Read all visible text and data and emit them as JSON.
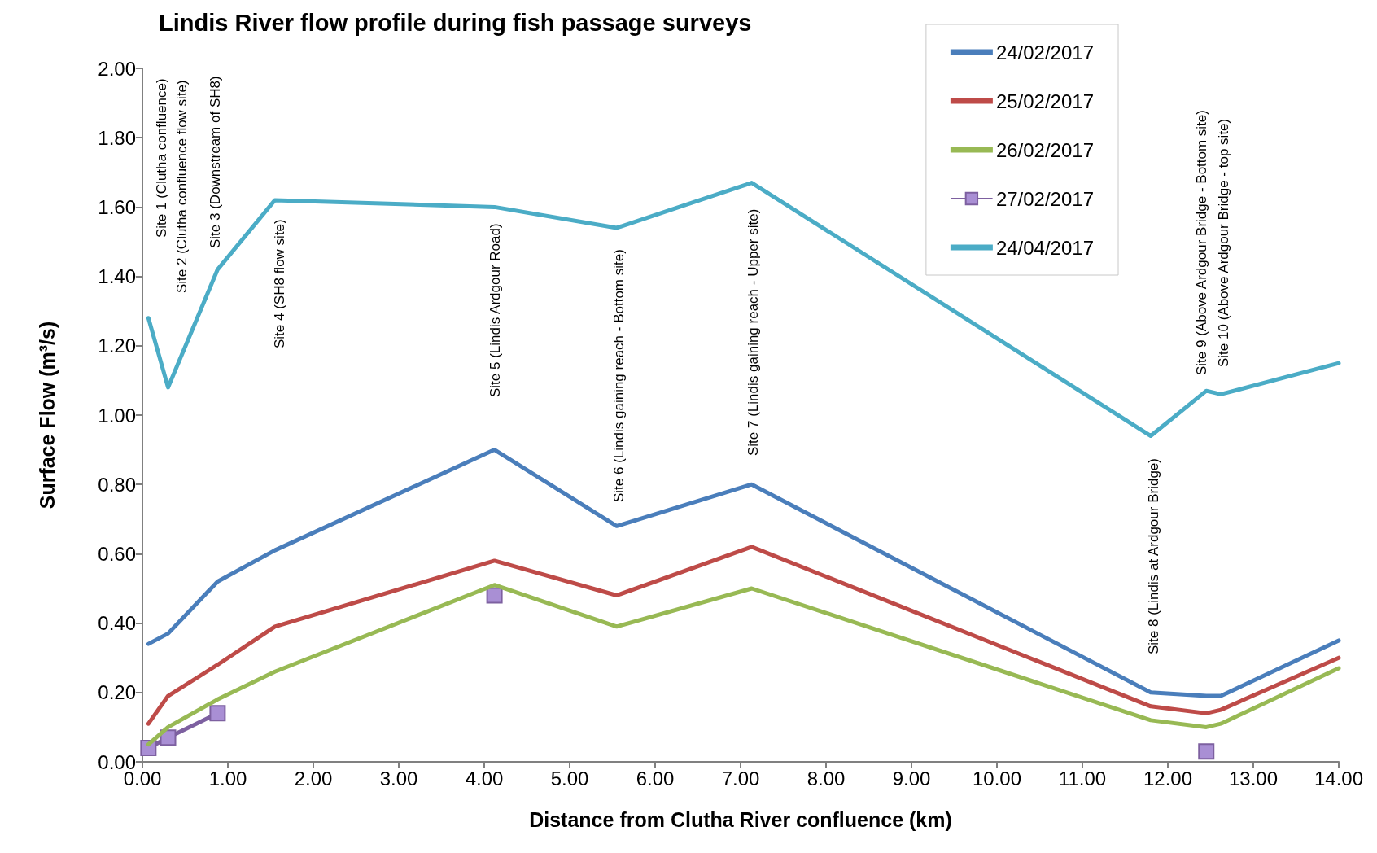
{
  "chart_data": {
    "type": "line",
    "title": "Lindis River flow profile during fish passage surveys",
    "xlabel": "Distance from Clutha River confluence (km)",
    "ylabel": "Surface Flow (m³/s)",
    "x": [
      0.07,
      0.3,
      0.88,
      1.55,
      4.12,
      5.55,
      7.13,
      11.8,
      12.45,
      12.62,
      14.0
    ],
    "series": [
      {
        "name": "24/02/2017",
        "color": "#4a7ebb",
        "marker": "none",
        "values": [
          0.34,
          0.37,
          0.52,
          0.61,
          0.9,
          0.68,
          0.8,
          0.2,
          0.19,
          0.19,
          0.35
        ]
      },
      {
        "name": "25/02/2017",
        "color": "#be4b48",
        "marker": "none",
        "values": [
          0.11,
          0.19,
          0.28,
          0.39,
          0.58,
          0.48,
          0.62,
          0.16,
          0.14,
          0.15,
          0.3
        ]
      },
      {
        "name": "26/02/2017",
        "color": "#98b954",
        "marker": "none",
        "values": [
          0.05,
          0.1,
          0.18,
          0.26,
          0.51,
          0.39,
          0.5,
          0.12,
          0.1,
          0.11,
          0.27
        ]
      },
      {
        "name": "27/02/2017",
        "color": "#7d60a0",
        "marker": "square",
        "values": [
          0.04,
          0.07,
          0.14,
          null,
          0.48,
          null,
          null,
          null,
          0.03,
          null,
          null
        ]
      },
      {
        "name": "24/04/2017",
        "color": "#4bacc6",
        "marker": "none",
        "values": [
          1.28,
          1.08,
          1.42,
          1.62,
          1.6,
          1.54,
          1.67,
          0.94,
          1.07,
          1.06,
          1.15
        ]
      }
    ],
    "xlim": [
      0,
      14
    ],
    "xticks": [
      {
        "value": 0,
        "label": "0.00"
      },
      {
        "value": 1,
        "label": "1.00"
      },
      {
        "value": 2,
        "label": "2.00"
      },
      {
        "value": 3,
        "label": "3.00"
      },
      {
        "value": 4,
        "label": "4.00"
      },
      {
        "value": 5,
        "label": "5.00"
      },
      {
        "value": 6,
        "label": "6.00"
      },
      {
        "value": 7,
        "label": "7.00"
      },
      {
        "value": 8,
        "label": "8.00"
      },
      {
        "value": 9,
        "label": "9.00"
      },
      {
        "value": 10,
        "label": "10.00"
      },
      {
        "value": 11,
        "label": "11.00"
      },
      {
        "value": 12,
        "label": "12.00"
      },
      {
        "value": 13,
        "label": "13.00"
      },
      {
        "value": 14,
        "label": "14.00"
      }
    ],
    "ylim": [
      0,
      2
    ],
    "yticks": [
      {
        "value": 0,
        "label": "0.00"
      },
      {
        "value": 0.2,
        "label": "0.20"
      },
      {
        "value": 0.4,
        "label": "0.40"
      },
      {
        "value": 0.6,
        "label": "0.60"
      },
      {
        "value": 0.8,
        "label": "0.80"
      },
      {
        "value": 1,
        "label": "1.00"
      },
      {
        "value": 1.2,
        "label": "1.20"
      },
      {
        "value": 1.4,
        "label": "1.40"
      },
      {
        "value": 1.6,
        "label": "1.60"
      },
      {
        "value": 1.8,
        "label": "1.80"
      },
      {
        "value": 2,
        "label": "2.00"
      }
    ],
    "grid": false,
    "legend": "top right",
    "annotations": [
      "Site 1 (Clutha confluence)",
      "Site 2 (Clutha confluence flow site)",
      "Site 3 (Downstream of SH8)",
      "Site 4 (SH8 flow site)",
      "Site 5 (Lindis Ardgour Road)",
      "Site 6 (Lindis gaining reach - Bottom site)",
      "Site 7 (Lindis gaining reach - Upper site)",
      "Site 8 (Lindis at Ardgour Bridge)",
      "Site 9 (Above Ardgour Bridge - Bottom site)",
      "Site 10 (Above Ardgour Bridge - top site)"
    ]
  }
}
